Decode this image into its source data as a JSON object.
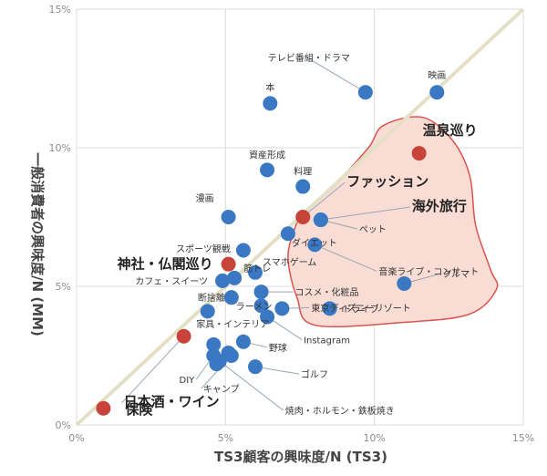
{
  "chart_data": {
    "type": "scatter",
    "xlabel": "TS3顧客の興味度/N (TS3)",
    "ylabel": "一般消費者の興味度/N (MM)",
    "xlim": [
      0,
      15
    ],
    "ylim": [
      0,
      15
    ],
    "x_ticks": [
      "0%",
      "5%",
      "10%",
      "15%"
    ],
    "y_ticks": [
      "0%",
      "5%",
      "10%",
      "15%"
    ],
    "grid": true,
    "diagonal": "y = x",
    "colors": {
      "point": "#3a78c4",
      "highlight": "#c8433a",
      "region_fill": "#f9ddd4",
      "region_stroke": "#d9534f",
      "diagonal": "#e4e0c6"
    },
    "points": [
      {
        "label": "テレビ番組・ドラマ",
        "x": 9.7,
        "y": 12.0,
        "highlight": false
      },
      {
        "label": "映画",
        "x": 12.1,
        "y": 12.0,
        "highlight": false
      },
      {
        "label": "本",
        "x": 6.5,
        "y": 11.6,
        "highlight": false
      },
      {
        "label": "温泉巡り",
        "x": 11.5,
        "y": 9.8,
        "highlight": true
      },
      {
        "label": "資産形成",
        "x": 6.4,
        "y": 9.2,
        "highlight": false
      },
      {
        "label": "料理",
        "x": 7.6,
        "y": 8.6,
        "highlight": false
      },
      {
        "label": "ファッション",
        "x": 7.6,
        "y": 7.5,
        "highlight": true
      },
      {
        "label": "海外旅行",
        "x": 8.2,
        "y": 7.4,
        "highlight": false
      },
      {
        "label": "漫画",
        "x": 5.1,
        "y": 7.5,
        "highlight": false
      },
      {
        "label": "ペット",
        "x": 8.2,
        "y": 7.4,
        "highlight": false
      },
      {
        "label": "ダイエット",
        "x": 7.1,
        "y": 6.9,
        "highlight": false
      },
      {
        "label": "音楽ライブ・コンサート",
        "x": 8.0,
        "y": 6.5,
        "highlight": false
      },
      {
        "label": "スポーツ観戦",
        "x": 5.6,
        "y": 6.3,
        "highlight": false
      },
      {
        "label": "神社・仏閣巡り",
        "x": 5.1,
        "y": 5.8,
        "highlight": true
      },
      {
        "label": "スマホゲーム",
        "x": 6.0,
        "y": 5.5,
        "highlight": false
      },
      {
        "label": "筋トレ",
        "x": 5.3,
        "y": 5.3,
        "highlight": false
      },
      {
        "label": "カフェ・スイーツ",
        "x": 4.9,
        "y": 5.2,
        "highlight": false
      },
      {
        "label": "クルマ",
        "x": 11.0,
        "y": 5.1,
        "highlight": false
      },
      {
        "label": "コスメ・化粧品",
        "x": 6.2,
        "y": 4.8,
        "highlight": false
      },
      {
        "label": "東京ディズニーリゾート",
        "x": 6.9,
        "y": 4.2,
        "highlight": false
      },
      {
        "label": "断捨離",
        "x": 5.2,
        "y": 4.6,
        "highlight": false
      },
      {
        "label": "ラーメン",
        "x": 6.2,
        "y": 4.3,
        "highlight": false
      },
      {
        "label": "ドライブ",
        "x": 8.5,
        "y": 4.2,
        "highlight": false
      },
      {
        "label": "Instagram",
        "x": 6.4,
        "y": 3.9,
        "highlight": false
      },
      {
        "label": "家具・インテリア",
        "x": 4.6,
        "y": 2.9,
        "highlight": false
      },
      {
        "label": "日本酒・ワイン",
        "x": 3.6,
        "y": 3.2,
        "highlight": true
      },
      {
        "label": "野球",
        "x": 5.6,
        "y": 3.0,
        "highlight": false
      },
      {
        "label": "DIY",
        "x": 4.6,
        "y": 2.5,
        "highlight": false
      },
      {
        "label": "ゴルフ",
        "x": 6.0,
        "y": 2.1,
        "highlight": false
      },
      {
        "label": "キャンプ",
        "x": 5.2,
        "y": 2.5,
        "highlight": false
      },
      {
        "label": "焼肉・ホルモン・鉄板焼き",
        "x": 4.8,
        "y": 2.3,
        "highlight": false
      },
      {
        "label": "保険",
        "x": 0.9,
        "y": 0.6,
        "highlight": true
      }
    ],
    "extra_points": [
      {
        "x": 4.4,
        "y": 4.1
      },
      {
        "x": 5.1,
        "y": 2.6
      },
      {
        "x": 4.7,
        "y": 2.2
      }
    ]
  }
}
